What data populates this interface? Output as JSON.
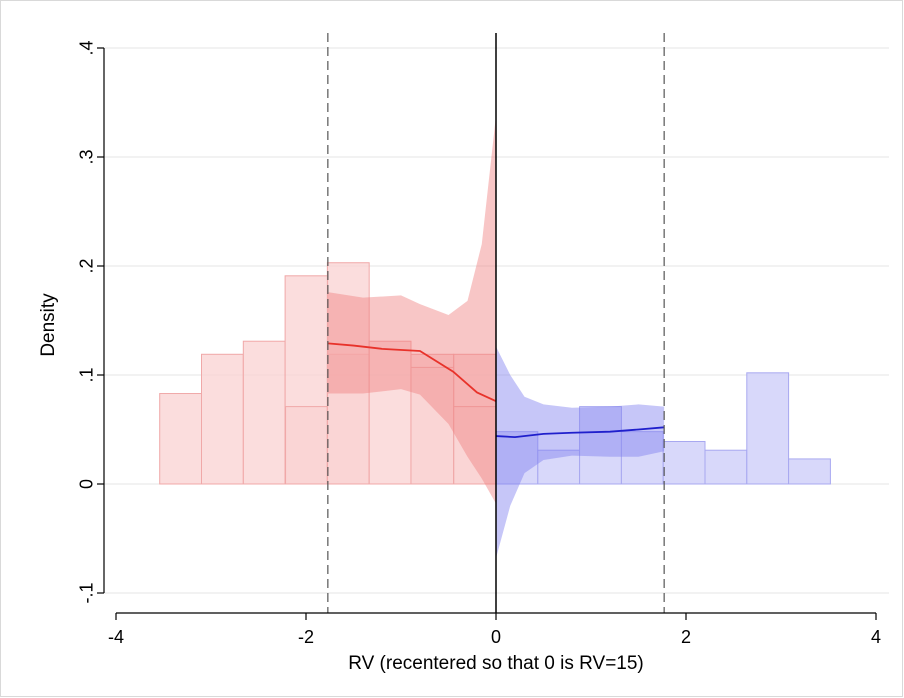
{
  "chart_data": {
    "type": "bar",
    "xlabel": "RV (recentered so that 0 is RV=15)",
    "ylabel": "Density",
    "xlim": [
      -4.2,
      4.2
    ],
    "ylim": [
      -0.11,
      0.405
    ],
    "x_ticks": [
      -4,
      -2,
      0,
      2,
      4
    ],
    "x_tick_labels": [
      "-4",
      "-2",
      "0",
      "2",
      "4"
    ],
    "y_ticks": [
      -0.1,
      0,
      0.1,
      0.2,
      0.3,
      0.4
    ],
    "y_tick_labels": [
      "-.1",
      "0",
      ".1",
      ".2",
      ".3",
      ".4"
    ],
    "grid": true,
    "cutoff": 0,
    "bandwidth_lines": [
      -1.77,
      1.77
    ],
    "colors": {
      "left_bar_fill": "#f9d1d1",
      "left_bar_stroke": "#f0a8a8",
      "left_ci": "#f08080",
      "left_line": "#e8322a",
      "right_bar_fill": "#d4d4f9",
      "right_bar_stroke": "#a8a8f0",
      "right_ci": "#8080f0",
      "right_line": "#1f1fcc",
      "grid": "#e6e6e6"
    },
    "histogram": {
      "bin_width": 0.44,
      "left": [
        {
          "x0": -3.54,
          "value": 0.083
        },
        {
          "x0": -3.1,
          "value": 0.119
        },
        {
          "x0": -2.66,
          "value": 0.131
        },
        {
          "x0": -2.22,
          "value": 0.191
        },
        {
          "x0": -1.77,
          "value": 0.071
        },
        {
          "x0": -1.33,
          "value": 0.119
        },
        {
          "x0": -0.89,
          "value": 0.203
        },
        {
          "x0": -0.45,
          "value": 0.131
        },
        {
          "x0": -0.01,
          "value": 0.119
        }
      ],
      "left_extra": [
        {
          "x0": -2.215,
          "x1": -1.775,
          "value": 0.071
        },
        {
          "x0": -1.775,
          "x1": -1.335,
          "value": 0.203
        },
        {
          "x0": -1.335,
          "x1": -0.895,
          "value": 0.131
        },
        {
          "x0": -0.895,
          "x1": -0.445,
          "value": 0.107
        },
        {
          "x0": -0.445,
          "x1": 0,
          "value": 0.119
        }
      ],
      "bars_left": [
        {
          "x0": -3.54,
          "x1": -3.1,
          "value": 0.083
        },
        {
          "x0": -3.1,
          "x1": -2.66,
          "value": 0.119
        },
        {
          "x0": -2.66,
          "x1": -2.22,
          "value": 0.131
        },
        {
          "x0": -2.22,
          "x1": -1.77,
          "value": 0.191
        },
        {
          "x0": -1.77,
          "x1": -1.33,
          "value": 0.071
        },
        {
          "x0": -1.77,
          "x1": -1.33,
          "value": 0.203
        },
        {
          "x0": -1.33,
          "x1": -0.89,
          "value": 0.131
        },
        {
          "x0": -0.89,
          "x1": -0.45,
          "value": 0.107
        },
        {
          "x0": -0.45,
          "x1": 0,
          "value": 0.119
        }
      ]
    },
    "bars_left": [
      {
        "x0": -3.54,
        "x1": -3.1,
        "value": 0.083
      },
      {
        "x0": -3.1,
        "x1": -2.66,
        "value": 0.119
      },
      {
        "x0": -2.66,
        "x1": -2.22,
        "value": 0.131
      },
      {
        "x0": -2.22,
        "x1": -1.77,
        "value": 0.191
      },
      {
        "x0": -2.22,
        "x1": -1.77,
        "value": 0.071
      },
      {
        "x0": -1.77,
        "x1": -1.33,
        "value": 0.203
      },
      {
        "x0": -1.33,
        "x1": -0.89,
        "value": 0.131
      },
      {
        "x0": -0.89,
        "x1": -0.45,
        "value": 0.107
      },
      {
        "x0": -0.45,
        "x1": 0,
        "value": 0.119
      }
    ],
    "left_bars": [
      {
        "x0": -3.54,
        "x1": -3.1,
        "value": 0.083
      },
      {
        "x0": -3.1,
        "x1": -2.66,
        "value": 0.119
      },
      {
        "x0": -2.66,
        "x1": -2.22,
        "value": 0.131
      },
      {
        "x0": -2.22,
        "x1": -1.77,
        "value": 0.191
      },
      {
        "x0": -2.215,
        "x1": -1.775,
        "value": 0.071
      },
      {
        "x0": -1.775,
        "x1": -1.335,
        "value": 0.119
      },
      {
        "x0": -1.775,
        "x1": -1.335,
        "value": 0.203
      },
      {
        "x0": -1.335,
        "x1": -0.895,
        "value": 0.131
      },
      {
        "x0": -0.895,
        "x1": -0.445,
        "value": 0.119
      },
      {
        "x0": -0.895,
        "x1": -0.445,
        "value": 0.107
      },
      {
        "x0": -0.445,
        "x1": 0,
        "value": 0.119
      },
      {
        "x0": -0.445,
        "x1": 0,
        "value": 0.071
      }
    ],
    "right_bars": [
      {
        "x0": 0,
        "x1": 0.44,
        "value": 0.048
      },
      {
        "x0": 0.44,
        "x1": 0.88,
        "value": 0.031
      },
      {
        "x0": 0.88,
        "x1": 1.32,
        "value": 0.071
      },
      {
        "x0": 1.32,
        "x1": 1.76,
        "value": 0.048
      },
      {
        "x0": 1.76,
        "x1": 2.2,
        "value": 0.039
      },
      {
        "x0": 2.2,
        "x1": 2.64,
        "value": 0.031
      },
      {
        "x0": 2.64,
        "x1": 3.08,
        "value": 0.102
      },
      {
        "x0": 3.08,
        "x1": 3.52,
        "value": 0.023
      }
    ],
    "series": [
      {
        "side": "left",
        "line": {
          "x": [
            -1.77,
            -1.5,
            -1.2,
            -0.8,
            -0.45,
            -0.2,
            0
          ],
          "y": [
            0.129,
            0.127,
            0.124,
            0.122,
            0.103,
            0.084,
            0.076
          ]
        },
        "ci_upper": {
          "x": [
            -1.77,
            -1.4,
            -1.0,
            -0.8,
            -0.5,
            -0.3,
            -0.15,
            0
          ],
          "y": [
            0.176,
            0.171,
            0.173,
            0.165,
            0.155,
            0.168,
            0.22,
            0.338
          ]
        },
        "ci_lower": {
          "x": [
            -1.77,
            -1.4,
            -1.0,
            -0.8,
            -0.5,
            -0.3,
            -0.15,
            0
          ],
          "y": [
            0.083,
            0.083,
            0.087,
            0.082,
            0.055,
            0.025,
            0.005,
            -0.018
          ]
        }
      },
      {
        "side": "right",
        "line": {
          "x": [
            0,
            0.2,
            0.5,
            0.8,
            1.2,
            1.5,
            1.77
          ],
          "y": [
            0.044,
            0.043,
            0.046,
            0.047,
            0.048,
            0.05,
            0.052
          ]
        },
        "ci_upper": {
          "x": [
            0,
            0.15,
            0.3,
            0.5,
            0.8,
            1.2,
            1.5,
            1.77
          ],
          "y": [
            0.126,
            0.1,
            0.08,
            0.073,
            0.07,
            0.071,
            0.073,
            0.071
          ]
        },
        "ci_lower": {
          "x": [
            0,
            0.15,
            0.3,
            0.5,
            0.8,
            1.2,
            1.5,
            1.77
          ],
          "y": [
            -0.068,
            -0.02,
            0.01,
            0.022,
            0.026,
            0.025,
            0.025,
            0.03
          ]
        }
      }
    ]
  }
}
